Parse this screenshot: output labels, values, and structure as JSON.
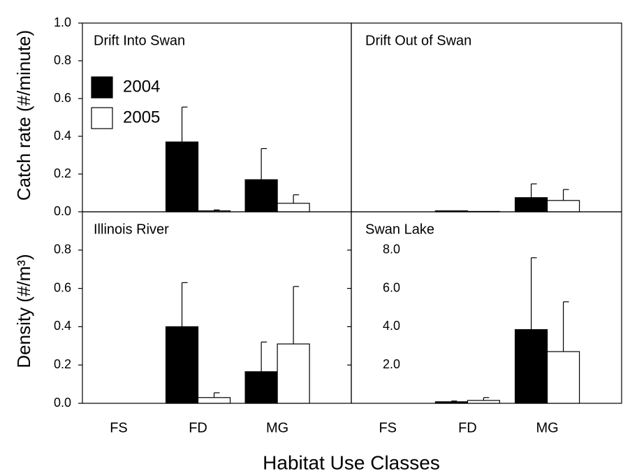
{
  "chart_data": [
    {
      "type": "bar",
      "title": "Drift Into Swan",
      "ylabel": "Catch rate (#/minute)",
      "categories": [
        null,
        null,
        null
      ],
      "series": [
        {
          "name": "2004",
          "color": "#000000",
          "values": [
            0,
            0.37,
            0.17
          ],
          "errors": [
            0,
            0.185,
            0.165
          ]
        },
        {
          "name": "2005",
          "color": "#ffffff",
          "values": [
            0,
            0.005,
            0.045
          ],
          "errors": [
            0,
            0.005,
            0.045
          ]
        }
      ],
      "ylim": [
        0,
        1.0
      ],
      "yticks": [
        {
          "value": 0,
          "label": "0.0"
        },
        {
          "value": 0.2,
          "label": "0.2"
        },
        {
          "value": 0.4,
          "label": "0.4"
        },
        {
          "value": 0.6,
          "label": "0.6"
        },
        {
          "value": 0.8,
          "label": "0.8"
        },
        {
          "value": 1.0,
          "label": "1.0"
        }
      ]
    },
    {
      "type": "bar",
      "title": "Drift Out of Swan",
      "categories": [
        null,
        null,
        null
      ],
      "series": [
        {
          "color": "#000000",
          "values": [
            0,
            0.005,
            0.075
          ],
          "errors": [
            0,
            0,
            0.073
          ]
        },
        {
          "color": "#ffffff",
          "values": [
            0,
            0.002,
            0.06
          ],
          "errors": [
            0,
            0,
            0.058
          ]
        }
      ],
      "ylim": [
        0,
        1.0
      ],
      "yticks": []
    },
    {
      "type": "bar",
      "title": "Illinois River",
      "ylabel": "Density (#/m³)",
      "xlabel": "Habitat Use Classes",
      "categories": [
        "FS",
        "FD",
        "MG"
      ],
      "series": [
        {
          "color": "#000000",
          "values": [
            0,
            0.4,
            0.165
          ],
          "errors": [
            0,
            0.23,
            0.155
          ]
        },
        {
          "color": "#ffffff",
          "values": [
            0,
            0.03,
            0.31
          ],
          "errors": [
            0,
            0.025,
            0.3
          ]
        }
      ],
      "ylim": [
        0,
        1.0
      ],
      "yticks": [
        {
          "value": 0,
          "label": "0.0"
        },
        {
          "value": 0.2,
          "label": "0.2"
        },
        {
          "value": 0.4,
          "label": "0.4"
        },
        {
          "value": 0.6,
          "label": "0.6"
        },
        {
          "value": 0.8,
          "label": "0.8"
        }
      ]
    },
    {
      "type": "bar",
      "title": "Swan Lake",
      "categories": [
        "FS",
        "FD",
        "MG"
      ],
      "series": [
        {
          "color": "#000000",
          "values": [
            0,
            0.08,
            3.85
          ],
          "errors": [
            0,
            0.04,
            3.75
          ]
        },
        {
          "color": "#ffffff",
          "values": [
            0,
            0.15,
            2.7
          ],
          "errors": [
            0,
            0.15,
            2.6
          ]
        }
      ],
      "ylim": [
        0,
        10
      ],
      "yticks": [
        {
          "value": 2,
          "label": "2.0"
        },
        {
          "value": 4,
          "label": "4.0"
        },
        {
          "value": 6,
          "label": "6.0"
        },
        {
          "value": 8,
          "label": "8.0"
        }
      ]
    }
  ]
}
